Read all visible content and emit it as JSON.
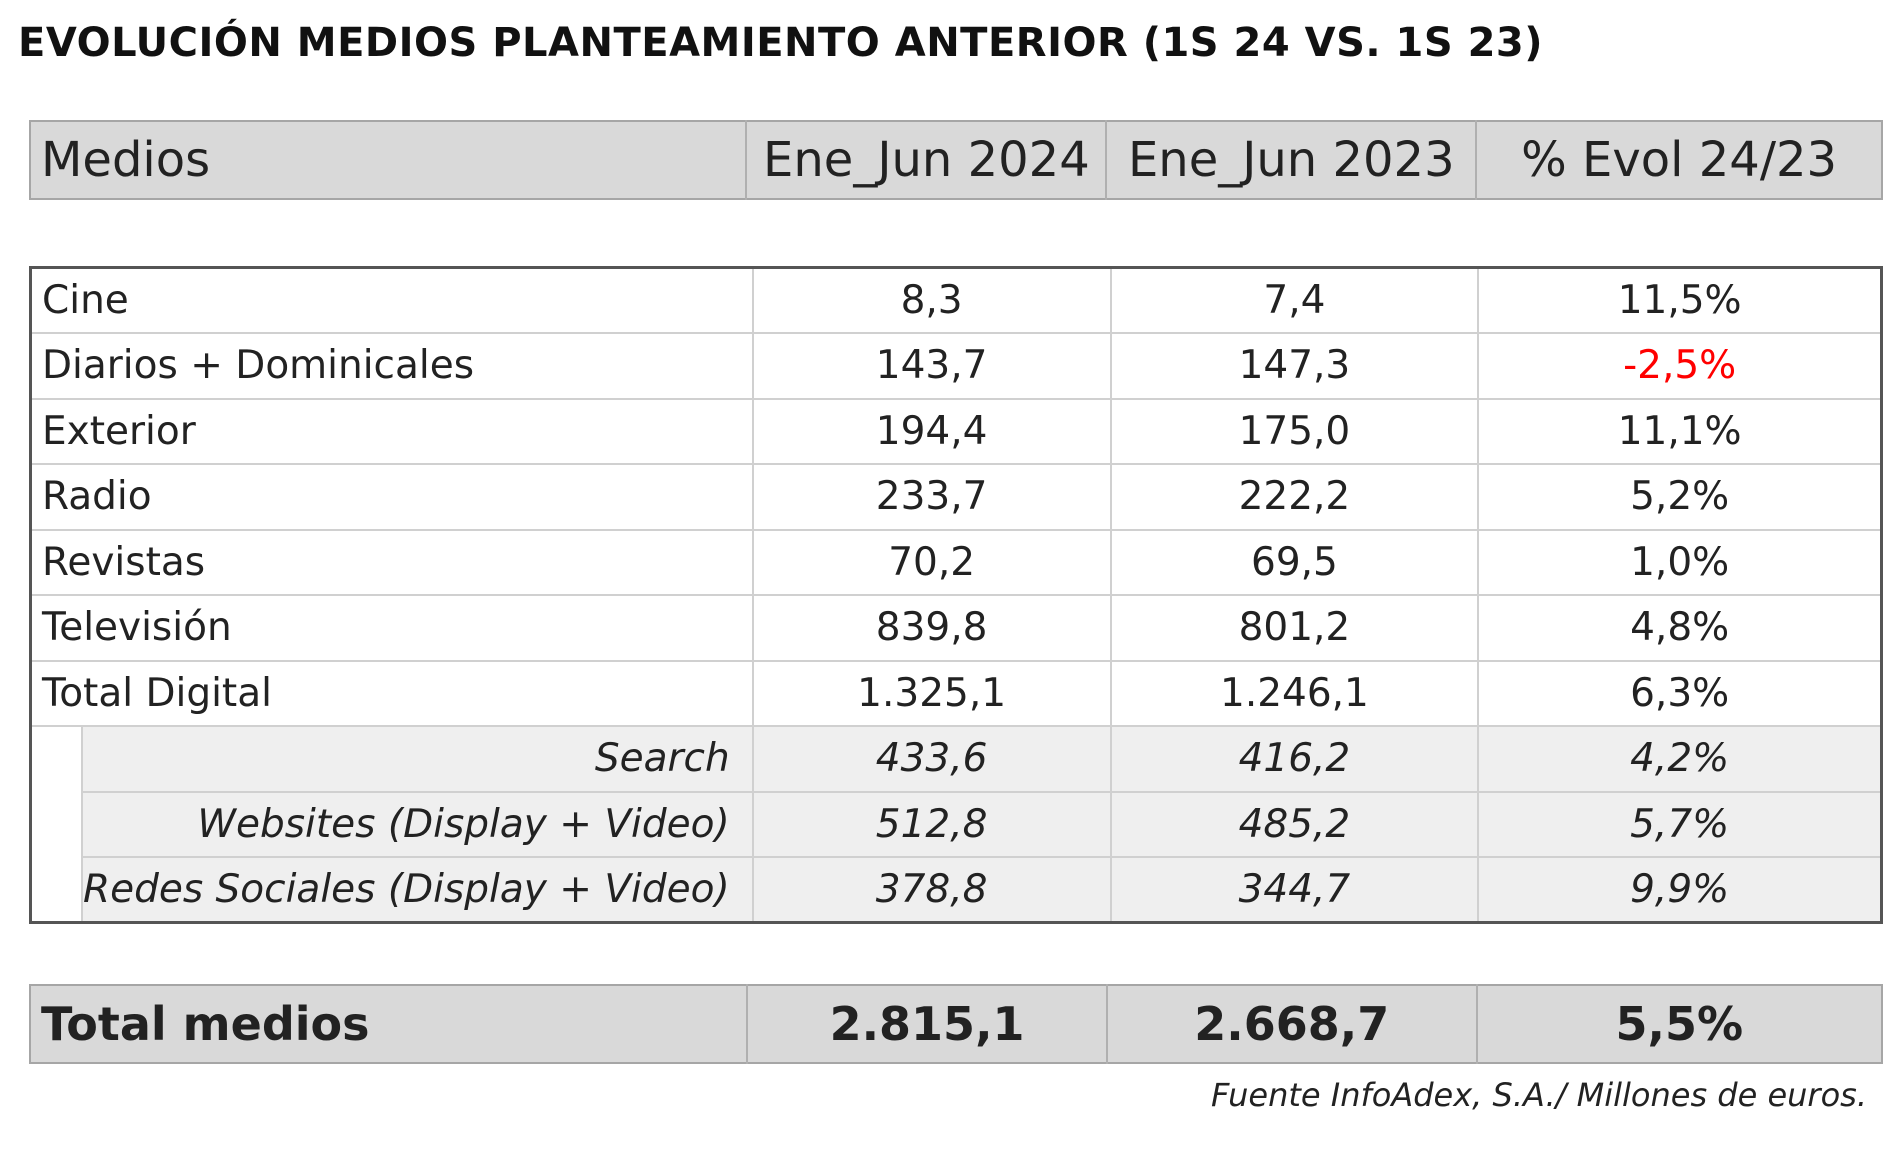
{
  "title": "EVOLUCIÓN MEDIOS PLANTEAMIENTO ANTERIOR (1S 24 VS. 1S 23)",
  "header": {
    "medios": "Medios",
    "col_2024": "Ene_Jun 2024",
    "col_2023": "Ene_Jun 2023",
    "col_evol": "% Evol 24/23"
  },
  "rows": [
    {
      "medio": "Cine",
      "v2024": "8,3",
      "v2023": "7,4",
      "evol": "11,5%"
    },
    {
      "medio": "Diarios + Dominicales",
      "v2024": "143,7",
      "v2023": "147,3",
      "evol": "-2,5%"
    },
    {
      "medio": "Exterior",
      "v2024": "194,4",
      "v2023": "175,0",
      "evol": "11,1%"
    },
    {
      "medio": "Radio",
      "v2024": "233,7",
      "v2023": "222,2",
      "evol": "5,2%"
    },
    {
      "medio": "Revistas",
      "v2024": "70,2",
      "v2023": "69,5",
      "evol": "1,0%"
    },
    {
      "medio": "Televisión",
      "v2024": "839,8",
      "v2023": "801,2",
      "evol": "4,8%"
    },
    {
      "medio": "Total Digital",
      "v2024": "1.325,1",
      "v2023": "1.246,1",
      "evol": "6,3%"
    }
  ],
  "sub_rows": [
    {
      "medio": "Search",
      "v2024": "433,6",
      "v2023": "416,2",
      "evol": "4,2%"
    },
    {
      "medio": "Websites (Display + Video)",
      "v2024": "512,8",
      "v2023": "485,2",
      "evol": "5,7%"
    },
    {
      "medio": "Redes Sociales (Display + Video)",
      "v2024": "378,8",
      "v2023": "344,7",
      "evol": "9,9%"
    }
  ],
  "total": {
    "medio": "Total medios",
    "v2024": "2.815,1",
    "v2023": "2.668,7",
    "evol": "5,5%"
  },
  "source": "Fuente InfoAdex, S.A./ Millones de euros.",
  "colors": {
    "negative": "#ff0000",
    "header_bg": "#d9d9d9",
    "sub_bg": "#efefef"
  }
}
